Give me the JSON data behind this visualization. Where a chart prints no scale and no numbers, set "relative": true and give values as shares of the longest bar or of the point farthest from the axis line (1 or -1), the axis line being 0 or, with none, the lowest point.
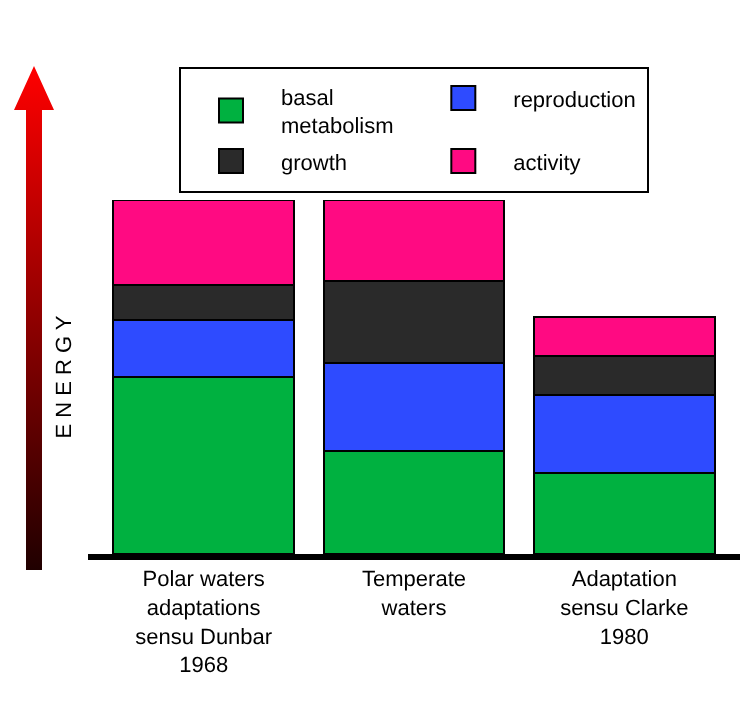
{
  "chart_data": {
    "type": "bar",
    "stacked": true,
    "relative": true,
    "ylabel": "E N E R G Y",
    "legend": "top",
    "categories": [
      "Polar waters adaptations sensu Dunbar 1968",
      "Temperate waters",
      "Adaptation sensu Clarke 1980"
    ],
    "series": [
      {
        "name": "basal metabolism",
        "color": "#00b140",
        "values": [
          0.5,
          0.29,
          0.23
        ]
      },
      {
        "name": "reproduction",
        "color": "#2e4bff",
        "values": [
          0.16,
          0.25,
          0.22
        ]
      },
      {
        "name": "growth",
        "color": "#2a2a2a",
        "values": [
          0.1,
          0.23,
          0.11
        ]
      },
      {
        "name": "activity",
        "color": "#ff0a82",
        "values": [
          0.24,
          0.23,
          0.11
        ]
      }
    ]
  }
}
